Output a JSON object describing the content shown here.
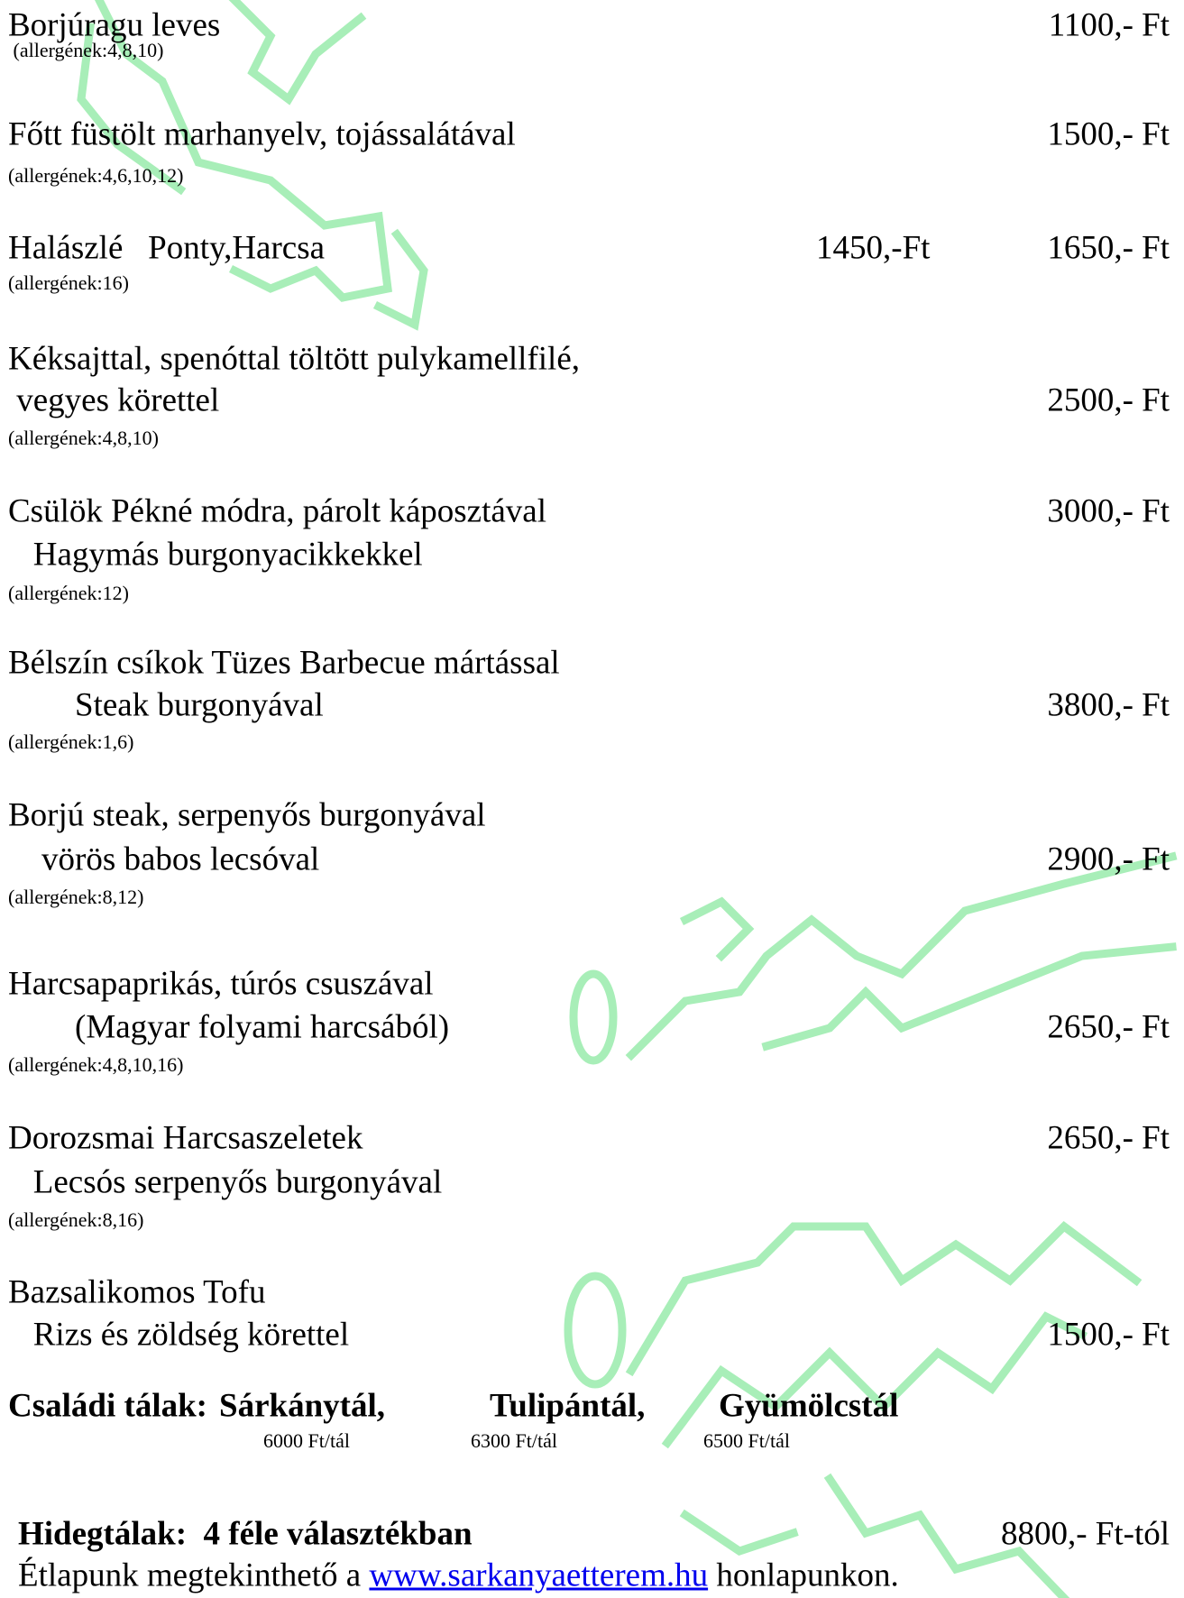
{
  "menu": {
    "items": [
      {
        "lines": [
          "Borjúragu leves"
        ],
        "allergens": " (allergének:4,8,10)",
        "price": "1100,- Ft"
      },
      {
        "lines": [
          "Főtt füstölt marhanyelv, tojássalátával"
        ],
        "allergens": "(allergének:4,6,10,12)",
        "price": "1500,- Ft"
      },
      {
        "lines": [
          "Halászlé   Ponty,Harcsa"
        ],
        "allergens": "(allergének:16)",
        "alt_price": "1450,-Ft",
        "price": "1650,- Ft"
      },
      {
        "lines": [
          "Kéksajttal, spenóttal töltött pulykamellfilé,",
          " vegyes körettel"
        ],
        "allergens": "(allergének:4,8,10)",
        "price": "2500,- Ft"
      },
      {
        "lines": [
          "Csülök Pékné módra, párolt káposztával",
          "   Hagymás burgonyacikkekkel"
        ],
        "allergens": "(allergének:12)",
        "price": "3000,- Ft"
      },
      {
        "lines": [
          "Bélszín csíkok Tüzes Barbecue mártással",
          "        Steak burgonyával"
        ],
        "allergens": "(allergének:1,6)",
        "price": "3800,- Ft"
      },
      {
        "lines": [
          "Borjú steak, serpenyős burgonyával",
          "    vörös babos lecsóval"
        ],
        "allergens": "(allergének:8,12)",
        "price": "2900,- Ft"
      },
      {
        "lines": [
          "Harcsapaprikás, túrós csuszával",
          "        (Magyar folyami harcsából)"
        ],
        "allergens": "(allergének:4,8,10,16)",
        "price": "2650,- Ft"
      },
      {
        "lines": [
          "Dorozsmai Harcsaszeletek",
          "   Lecsós serpenyős burgonyával"
        ],
        "allergens": "(allergének:8,16)",
        "price": "2650,- Ft"
      },
      {
        "lines": [
          "Bazsalikomos Tofu",
          "   Rizs és zöldség körettel"
        ],
        "price": "1500,- Ft"
      }
    ],
    "family": {
      "title": "Családi tálak:",
      "platters": [
        {
          "name": "Sárkánytál,",
          "price": "6000 Ft/tál"
        },
        {
          "name": "Tulipántál,",
          "price": "6300 Ft/tál"
        },
        {
          "name": "Gyümölcstál",
          "price": "6500 Ft/tál"
        }
      ]
    },
    "cold": {
      "title": "Hidegtálak:  4 féle választékban",
      "price": "8800,- Ft-tól"
    },
    "footer": {
      "before": "Étlapunk megtekinthető a ",
      "link": "www.sarkanyaetterem.hu",
      "after": " honlapunkon."
    }
  }
}
